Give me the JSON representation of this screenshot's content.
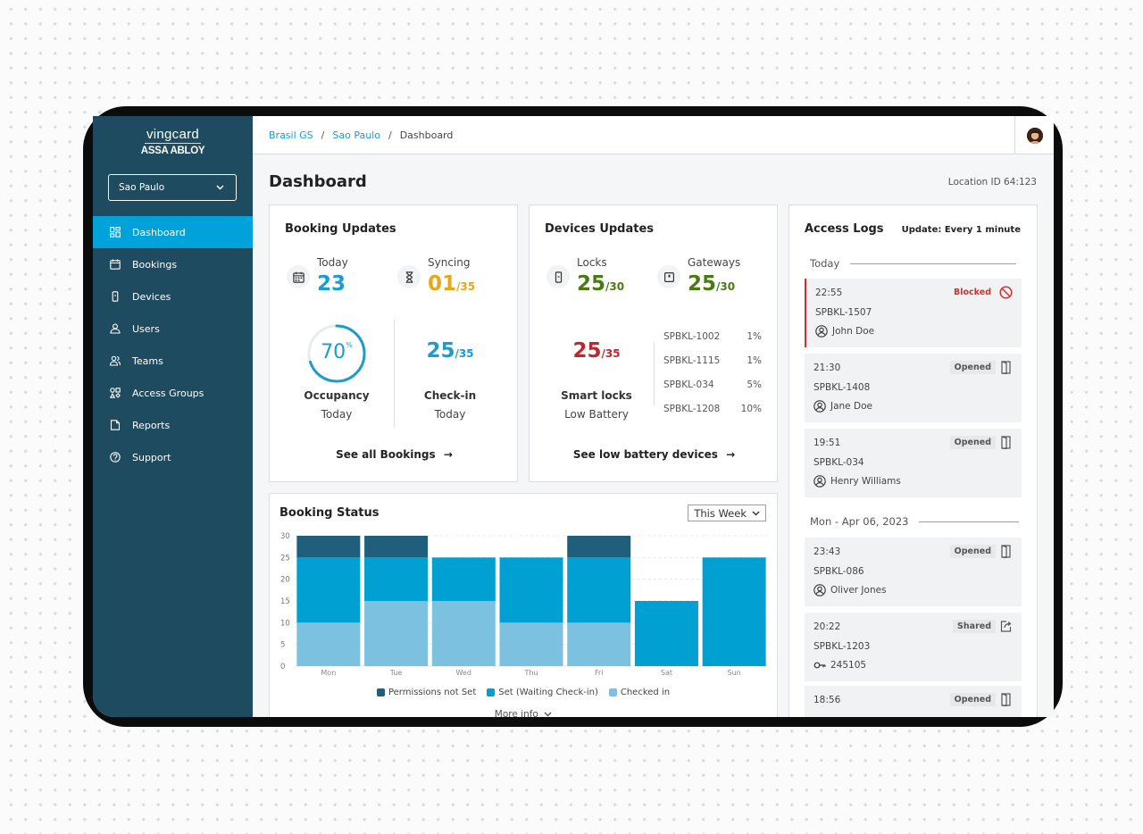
{
  "brand": {
    "name": "vingcard",
    "sub": "ASSA ABLOY"
  },
  "location_select": {
    "value": "Sao Paulo"
  },
  "nav": [
    {
      "label": "Dashboard",
      "icon": "dashboard-icon"
    },
    {
      "label": "Bookings",
      "icon": "calendar-icon"
    },
    {
      "label": "Devices",
      "icon": "lock-device-icon"
    },
    {
      "label": "Users",
      "icon": "user-icon"
    },
    {
      "label": "Teams",
      "icon": "team-icon"
    },
    {
      "label": "Access Groups",
      "icon": "groups-icon"
    },
    {
      "label": "Reports",
      "icon": "report-icon"
    },
    {
      "label": "Support",
      "icon": "help-icon"
    }
  ],
  "breadcrumb": {
    "items": [
      "Brasil GS",
      "Sao Paulo",
      "Dashboard"
    ],
    "sep": "/"
  },
  "page": {
    "title": "Dashboard",
    "location_id": "Location ID 64:123"
  },
  "booking_updates": {
    "title": "Booking Updates",
    "today_label": "Today",
    "today_value": "23",
    "syncing_label": "Syncing",
    "syncing_value": "01",
    "syncing_total": "/35",
    "occupancy_value": "70",
    "occupancy_unit": "%",
    "occupancy_fraction": 0.7,
    "occupancy_label": "Occupancy",
    "occupancy_sub": "Today",
    "checkin_value": "25",
    "checkin_total": "/35",
    "checkin_label": "Check-in",
    "checkin_sub": "Today",
    "link": "See all Bookings"
  },
  "devices_updates": {
    "title": "Devices Updates",
    "locks_label": "Locks",
    "locks_value": "25",
    "locks_total": "/30",
    "gateways_label": "Gateways",
    "gateways_value": "25",
    "gateways_total": "/30",
    "smart_value": "25",
    "smart_total": "/35",
    "smart_label": "Smart locks",
    "smart_sub": "Low Battery",
    "low_devices": [
      {
        "id": "SPBKL-1002",
        "pct": "1%"
      },
      {
        "id": "SPBKL-1115",
        "pct": "1%"
      },
      {
        "id": "SPBKL-034",
        "pct": "5%"
      },
      {
        "id": "SPBKL-1208",
        "pct": "10%"
      }
    ],
    "link": "See low battery devices"
  },
  "booking_status": {
    "title": "Booking Status",
    "range": "This Week",
    "more": "More info"
  },
  "chart_data": {
    "type": "bar",
    "stacked": true,
    "categories": [
      "Mon",
      "Tue",
      "Wed",
      "Thu",
      "Fri",
      "Sat",
      "Sun"
    ],
    "series": [
      {
        "name": "Checked in",
        "color": "#7dc1e0",
        "values": [
          10,
          15,
          15,
          10,
          10,
          0,
          0
        ]
      },
      {
        "name": "Set (Waiting Check-in)",
        "color": "#00a0d2",
        "values": [
          15,
          10,
          10,
          15,
          15,
          15,
          25
        ]
      },
      {
        "name": "Permissions not Set",
        "color": "#1f5f7c",
        "values": [
          5,
          5,
          0,
          0,
          5,
          0,
          0
        ]
      }
    ],
    "legend_order": [
      "Permissions not Set",
      "Set (Waiting Check-in)",
      "Checked in"
    ],
    "ylim": [
      0,
      30
    ],
    "yticks": [
      0,
      5,
      10,
      15,
      20,
      25,
      30
    ],
    "grid": true,
    "legend_position": "bottom"
  },
  "access_logs": {
    "title": "Access Logs",
    "update": "Update: Every 1 minute",
    "groups": [
      {
        "day": "Today",
        "entries": [
          {
            "time": "22:55",
            "device": "SPBKL-1507",
            "who": "John Doe",
            "who_icon": "user-circle-icon",
            "status": "Blocked",
            "status_icon": "blocked-icon"
          },
          {
            "time": "21:30",
            "device": "SPBKL-1408",
            "who": "Jane Doe",
            "who_icon": "user-circle-icon",
            "status": "Opened",
            "status_icon": "door-icon"
          },
          {
            "time": "19:51",
            "device": "SPBKL-034",
            "who": "Henry Williams",
            "who_icon": "user-circle-icon",
            "status": "Opened",
            "status_icon": "door-icon"
          }
        ]
      },
      {
        "day": "Mon - Apr 06, 2023",
        "entries": [
          {
            "time": "23:43",
            "device": "SPBKL-086",
            "who": "Oliver Jones",
            "who_icon": "user-circle-icon",
            "status": "Opened",
            "status_icon": "door-icon"
          },
          {
            "time": "20:22",
            "device": "SPBKL-1203",
            "who": "245105",
            "who_icon": "key-icon",
            "status": "Shared",
            "status_icon": "share-icon"
          },
          {
            "time": "18:56",
            "device": "",
            "who": "",
            "who_icon": "",
            "status": "Opened",
            "status_icon": "door-icon"
          }
        ]
      }
    ]
  },
  "colors": {
    "sidebar": "#1e4b60",
    "accent": "#00a3d9",
    "green": "#4a7a12",
    "amber": "#e6a817",
    "red": "#c0262d"
  }
}
